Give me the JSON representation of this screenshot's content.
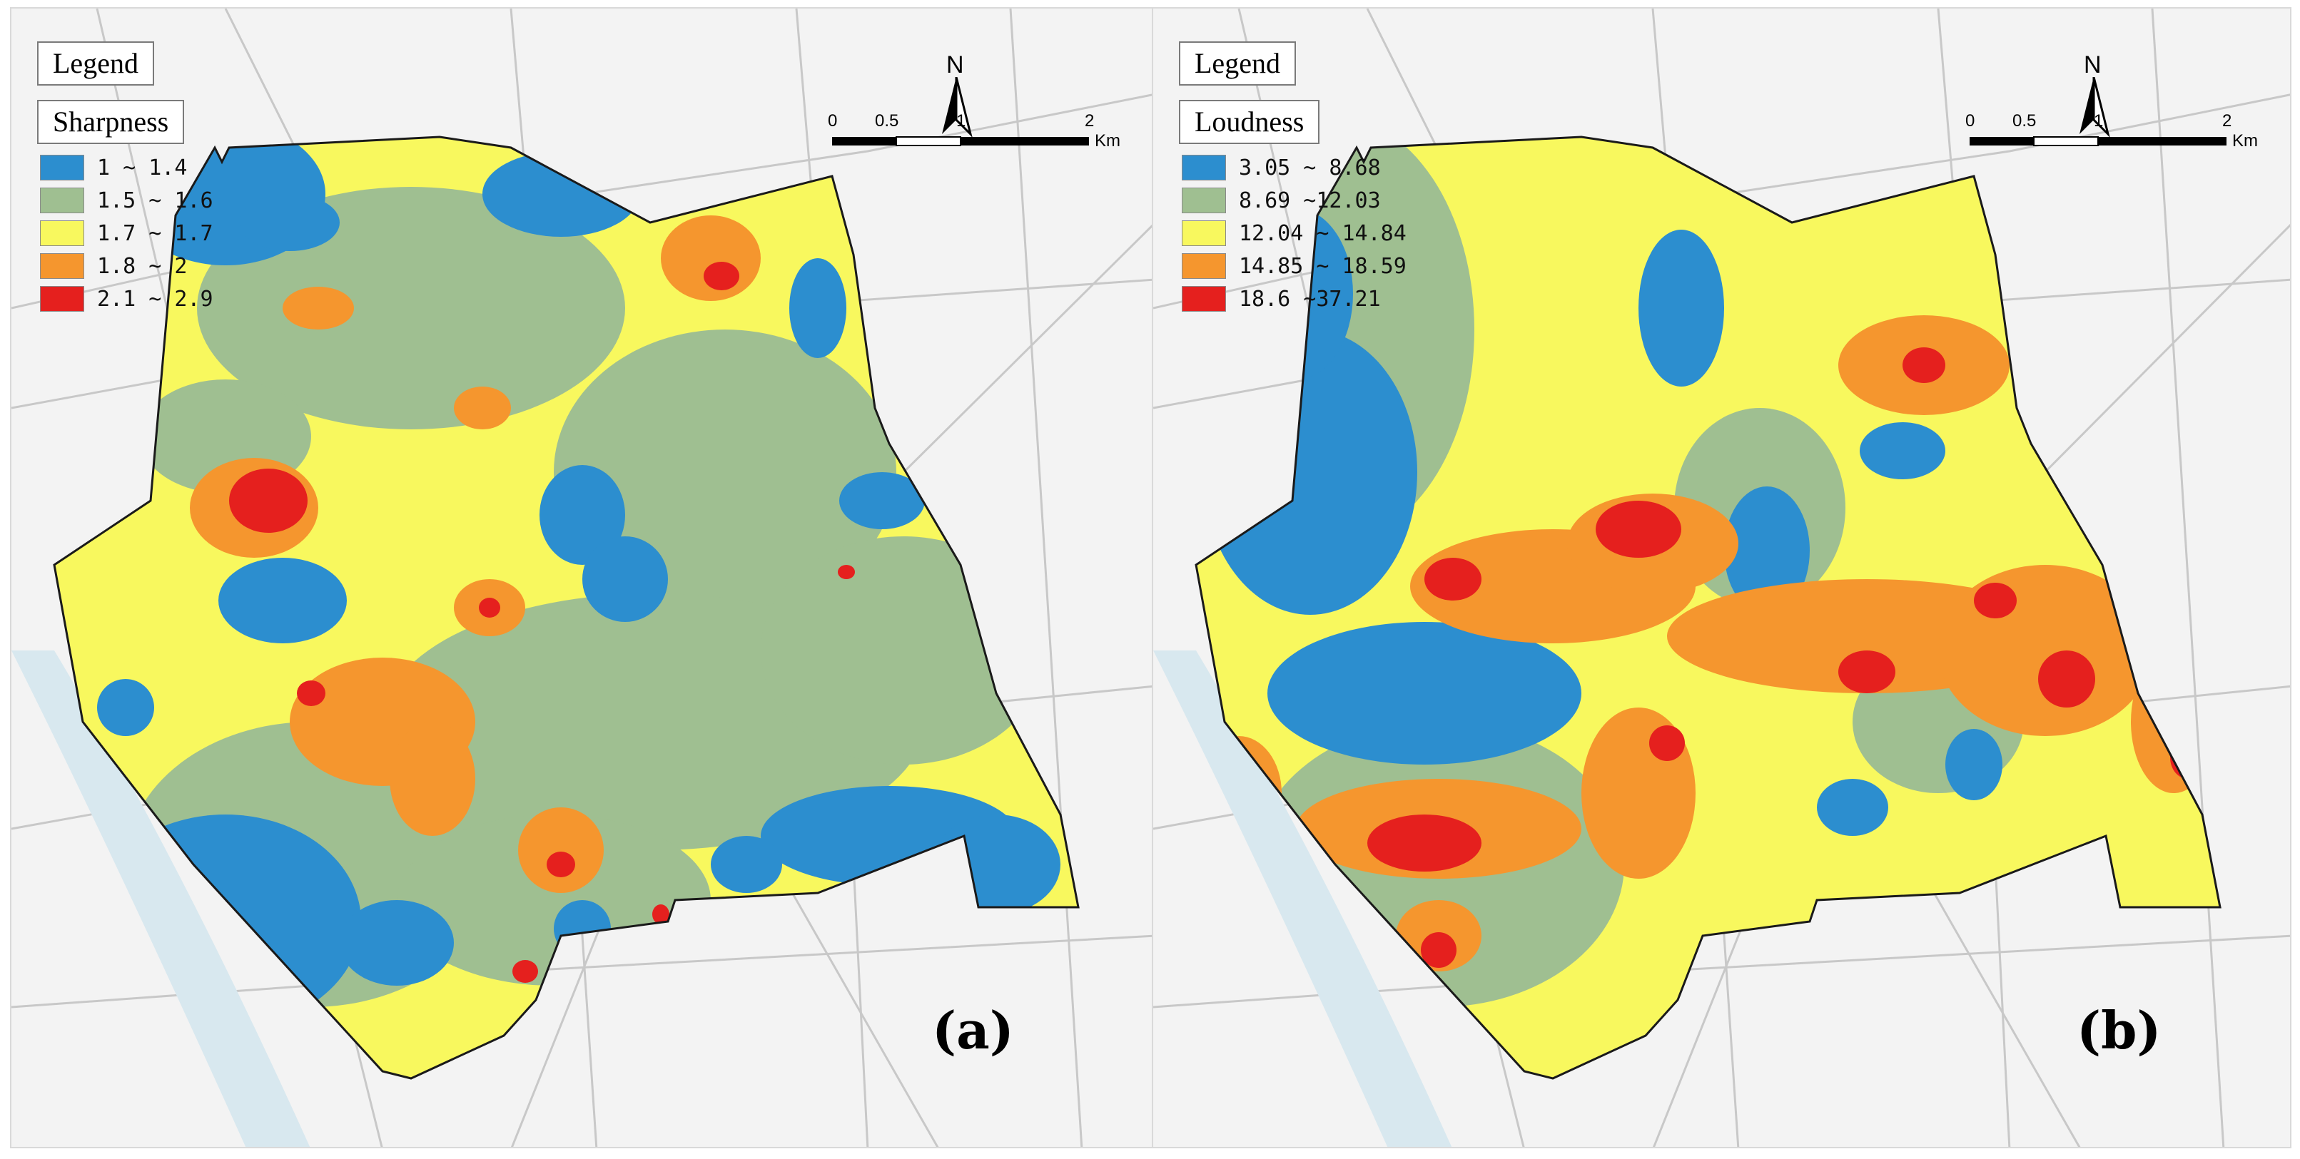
{
  "panels": [
    {
      "legend_title": "Legend",
      "field": "Sharpness",
      "classes": [
        {
          "label": "1 ~ 1.4",
          "color": "#2c8ecf"
        },
        {
          "label": "1.5 ~ 1.6",
          "color": "#9fbf91"
        },
        {
          "label": "1.7 ~ 1.7",
          "color": "#f8f85e"
        },
        {
          "label": "1.8 ~ 2",
          "color": "#f5962e"
        },
        {
          "label": "2.1 ~ 2.9",
          "color": "#e5201e"
        }
      ],
      "north_label": "N",
      "scale": {
        "ticks": [
          "0",
          "0.5",
          "1",
          "2"
        ],
        "unit": "Km"
      },
      "panel_label": "(a)"
    },
    {
      "legend_title": "Legend",
      "field": "Loudness",
      "classes": [
        {
          "label": "3.05 ~ 8.68",
          "color": "#2c8ecf"
        },
        {
          "label": "8.69 ~12.03",
          "color": "#9fbf91"
        },
        {
          "label": "12.04 ~ 14.84",
          "color": "#f8f85e"
        },
        {
          "label": "14.85 ~ 18.59",
          "color": "#f5962e"
        },
        {
          "label": "18.6 ~37.21",
          "color": "#e5201e"
        }
      ],
      "north_label": "N",
      "scale": {
        "ticks": [
          "0",
          "0.5",
          "1",
          "2"
        ],
        "unit": "Km"
      },
      "panel_label": "(b)"
    }
  ]
}
